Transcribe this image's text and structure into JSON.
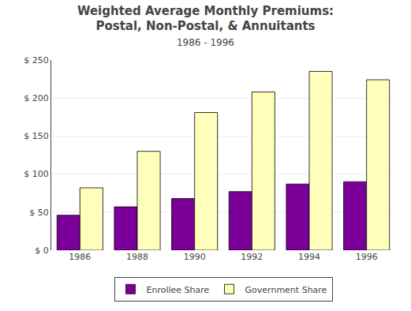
{
  "chart_data": {
    "type": "bar",
    "title": "Weighted Average Monthly Premiums:\nPostal, Non-Postal, & Annuitants",
    "subtitle": "1986 - 1996",
    "categories": [
      "1986",
      "1988",
      "1990",
      "1992",
      "1994",
      "1996"
    ],
    "series": [
      {
        "name": "Enrollee Share",
        "color": "#7B0099",
        "values": [
          46,
          57,
          68,
          77,
          87,
          90
        ]
      },
      {
        "name": "Government Share",
        "color": "#FFFFBB",
        "values": [
          82,
          130,
          181,
          208,
          235,
          224
        ]
      }
    ],
    "ylim": [
      0,
      250
    ],
    "yticks": [
      {
        "value": 0,
        "label": "$ 0"
      },
      {
        "value": 50,
        "label": "$ 50"
      },
      {
        "value": 100,
        "label": "$ 100"
      },
      {
        "value": 150,
        "label": "$ 150"
      },
      {
        "value": 200,
        "label": "$ 200"
      },
      {
        "value": 250,
        "label": "$ 250"
      }
    ],
    "grid": true,
    "legend": "bottom"
  }
}
